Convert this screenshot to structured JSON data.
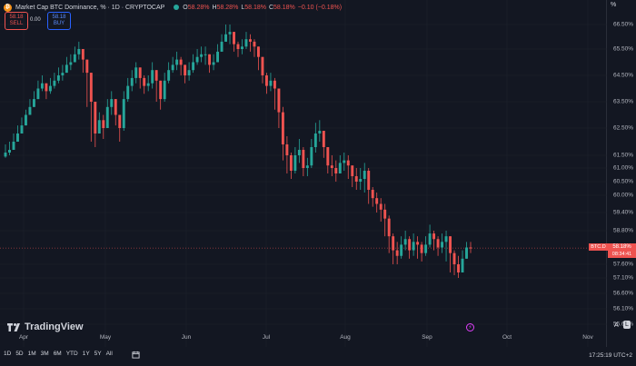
{
  "header": {
    "title": "Market Cap BTC Dominance, % · 1D · CRYPTOCAP",
    "ohlc": [
      {
        "k": "O",
        "v": "58.28%"
      },
      {
        "k": "H",
        "v": "58.28%"
      },
      {
        "k": "L",
        "v": "58.18%"
      },
      {
        "k": "C",
        "v": "58.18%"
      }
    ],
    "change": "−0.10 (−0.18%)"
  },
  "trade": {
    "sell_price": "58.18",
    "sell_label": "SELL",
    "spread": "0.00",
    "buy_price": "58.18",
    "buy_label": "BUY"
  },
  "price_tag": {
    "symbol": "BTC.D",
    "value": "58.18%",
    "countdown": "08:34:41"
  },
  "brand": {
    "name": "TradingView"
  },
  "axis_buttons": {
    "percent": "%",
    "auto": "A",
    "log": "L"
  },
  "range_buttons": [
    "1D",
    "5D",
    "1M",
    "3M",
    "6M",
    "YTD",
    "1Y",
    "5Y",
    "All"
  ],
  "clock": "17:25:19 UTC+2",
  "colors": {
    "up": "#26a69a",
    "down": "#ef5350",
    "bg": "#131722",
    "grid": "#1e222d"
  },
  "chart_data": {
    "type": "candlestick",
    "y_ticks": [
      "66.50%",
      "65.50%",
      "64.50%",
      "63.50%",
      "62.50%",
      "61.50%",
      "61.00%",
      "60.50%",
      "60.00%",
      "59.40%",
      "58.80%",
      "57.60%",
      "57.10%",
      "56.60%",
      "56.10%",
      "55.60%"
    ],
    "x_ticks": [
      "Apr",
      "May",
      "Jun",
      "Jul",
      "Aug",
      "Sep",
      "Oct",
      "Nov"
    ],
    "last_price": 58.18,
    "closes": [
      61.6,
      61.7,
      62.0,
      62.3,
      62.6,
      63.0,
      63.3,
      63.6,
      64.0,
      64.2,
      63.9,
      64.1,
      64.3,
      64.5,
      64.6,
      64.9,
      65.0,
      65.3,
      65.5,
      65.1,
      64.6,
      63.5,
      62.3,
      62.8,
      62.5,
      63.3,
      63.6,
      63.0,
      62.5,
      63.6,
      64.1,
      64.4,
      64.8,
      64.4,
      64.1,
      64.2,
      64.7,
      64.3,
      63.6,
      64.3,
      64.7,
      64.9,
      65.1,
      64.9,
      64.5,
      64.7,
      65.0,
      65.2,
      65.3,
      65.3,
      64.9,
      65.0,
      65.4,
      65.8,
      66.1,
      66.2,
      65.7,
      65.5,
      65.6,
      65.9,
      65.8,
      65.6,
      65.2,
      64.5,
      64.1,
      64.3,
      64.0,
      63.1,
      61.9,
      61.5,
      60.9,
      61.5,
      61.7,
      61.0,
      61.1,
      61.8,
      62.3,
      62.4,
      61.8,
      61.1,
      61.0,
      60.8,
      61.2,
      61.3,
      61.1,
      60.7,
      60.5,
      60.6,
      60.9,
      60.2,
      59.9,
      59.7,
      59.5,
      59.2,
      58.6,
      58.1,
      57.9,
      58.3,
      58.5,
      58.1,
      58.4,
      58.3,
      58.0,
      58.3,
      58.7,
      58.5,
      58.2,
      58.4,
      58.6,
      58.0,
      57.6,
      57.3,
      57.8,
      58.2,
      58.18
    ],
    "highs": [
      61.9,
      62.0,
      62.3,
      62.6,
      62.9,
      63.2,
      63.6,
      63.9,
      64.3,
      64.5,
      64.2,
      64.4,
      64.6,
      64.8,
      64.9,
      65.2,
      65.3,
      65.6,
      65.8,
      65.5,
      65.0,
      64.2,
      63.4,
      63.1,
      63.0,
      63.6,
      63.9,
      63.6,
      63.0,
      63.9,
      64.4,
      64.7,
      65.0,
      64.8,
      64.5,
      64.5,
      65.0,
      64.7,
      64.2,
      64.6,
      65.0,
      65.2,
      65.4,
      65.2,
      64.9,
      65.0,
      65.3,
      65.5,
      65.6,
      65.6,
      65.3,
      65.3,
      65.7,
      66.1,
      66.5,
      66.5,
      66.2,
      65.8,
      65.9,
      66.2,
      66.1,
      65.9,
      65.6,
      65.1,
      64.6,
      64.6,
      64.4,
      63.9,
      63.3,
      62.2,
      61.6,
      61.8,
      62.1,
      61.8,
      61.4,
      62.1,
      62.7,
      62.8,
      62.4,
      61.8,
      61.5,
      61.3,
      61.5,
      61.6,
      61.5,
      61.1,
      61.0,
      61.0,
      61.2,
      61.0,
      60.3,
      60.1,
      59.9,
      59.7,
      59.3,
      58.7,
      58.4,
      58.6,
      58.8,
      58.6,
      58.7,
      58.6,
      58.4,
      58.6,
      59.0,
      58.8,
      58.6,
      58.7,
      58.8,
      58.5,
      58.1,
      57.9,
      58.1,
      58.4,
      58.4
    ],
    "lows": [
      61.4,
      61.5,
      61.8,
      62.0,
      62.3,
      62.7,
      63.0,
      63.3,
      63.7,
      63.9,
      63.6,
      63.8,
      64.0,
      64.2,
      64.3,
      64.6,
      64.7,
      65.0,
      65.1,
      64.6,
      63.3,
      62.0,
      61.8,
      62.3,
      62.1,
      62.6,
      63.0,
      62.6,
      62.0,
      62.4,
      63.5,
      63.9,
      64.2,
      64.0,
      63.8,
      63.9,
      64.0,
      63.5,
      63.2,
      63.5,
      64.2,
      64.6,
      64.7,
      64.5,
      64.2,
      64.3,
      64.6,
      64.9,
      65.0,
      64.9,
      64.6,
      64.7,
      65.0,
      65.4,
      65.8,
      65.7,
      65.4,
      65.2,
      65.3,
      65.5,
      65.4,
      65.2,
      64.7,
      64.2,
      63.8,
      63.9,
      63.2,
      62.5,
      61.3,
      60.8,
      60.6,
      60.8,
      61.2,
      60.7,
      60.7,
      61.0,
      61.6,
      62.0,
      61.4,
      60.8,
      60.7,
      60.5,
      60.8,
      60.9,
      60.6,
      60.3,
      60.2,
      60.2,
      60.1,
      59.7,
      59.6,
      59.4,
      59.1,
      58.6,
      58.0,
      57.6,
      57.6,
      57.8,
      58.1,
      57.8,
      57.9,
      57.8,
      57.7,
      57.9,
      58.2,
      58.1,
      57.9,
      58.0,
      57.7,
      57.3,
      57.2,
      57.1,
      57.3,
      57.8,
      58.0
    ]
  }
}
